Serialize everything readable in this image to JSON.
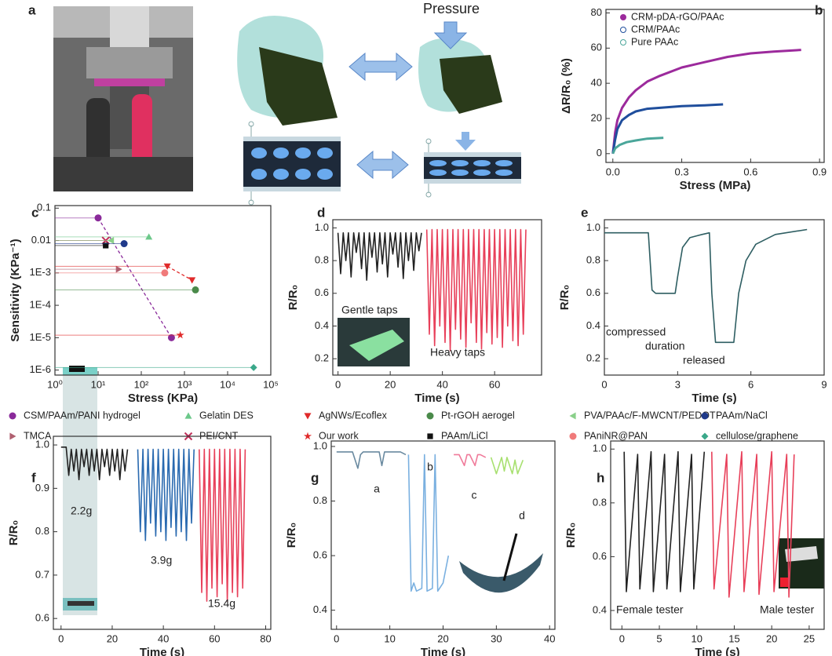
{
  "figure_a": {
    "panel": "a",
    "label": "Pressure"
  },
  "chart_data": [
    {
      "type": "line",
      "panel": "b",
      "xlabel": "Stress (MPa)",
      "ylabel": "ΔR/R₀ (%)",
      "xlim": [
        -0.03,
        0.92
      ],
      "ylim": [
        -5,
        82
      ],
      "xticks": [
        {
          "value": 0,
          "label": "0.0"
        },
        0.3,
        0.6,
        0.9
      ],
      "yticks": [
        0,
        20,
        40,
        60,
        80
      ],
      "legend": "upper left",
      "series": [
        {
          "name": "CRM-pDA-rGO/PAAc",
          "color": "#9c2a9c",
          "x": [
            0,
            0.01,
            0.02,
            0.04,
            0.07,
            0.1,
            0.15,
            0.2,
            0.3,
            0.4,
            0.5,
            0.6,
            0.7,
            0.82
          ],
          "values": [
            0,
            12,
            19,
            26,
            32,
            36,
            41,
            44,
            49,
            52,
            55,
            57,
            58,
            59
          ]
        },
        {
          "name": "CRM/PAAc",
          "color": "#1f4e9c",
          "x": [
            0,
            0.01,
            0.02,
            0.04,
            0.07,
            0.1,
            0.15,
            0.2,
            0.3,
            0.4,
            0.48
          ],
          "values": [
            0,
            8,
            14,
            19,
            22,
            24,
            25.5,
            26,
            27,
            27.5,
            28
          ]
        },
        {
          "name": "Pure PAAc",
          "color": "#4aa69a",
          "x": [
            0,
            0.01,
            0.03,
            0.06,
            0.1,
            0.15,
            0.22
          ],
          "values": [
            0,
            3,
            5,
            6.5,
            7.5,
            8.5,
            9
          ]
        }
      ]
    },
    {
      "type": "scatter",
      "panel": "c",
      "xlabel": "Stress (KPa)",
      "ylabel": "Sensitivity (KPa⁻¹)",
      "xscale": "log",
      "yscale": "log",
      "xlim": [
        1,
        100000
      ],
      "ylim": [
        7e-07,
        0.12
      ],
      "xticks": [
        {
          "value": 1,
          "label": "10⁰"
        },
        {
          "value": 10,
          "label": "10¹"
        },
        {
          "value": 100,
          "label": "10²"
        },
        {
          "value": 1000,
          "label": "10³"
        },
        {
          "value": 10000,
          "label": "10⁴"
        },
        {
          "value": 100000,
          "label": "10⁵"
        }
      ],
      "yticks": [
        {
          "value": 1e-06,
          "label": "1E-6"
        },
        {
          "value": 1e-05,
          "label": "1E-5"
        },
        {
          "value": 0.0001,
          "label": "1E-4"
        },
        {
          "value": 0.001,
          "label": "1E-3"
        },
        0.01,
        0.1
      ],
      "legend": "below",
      "series": [
        {
          "name": "CSM/PAAm/PANI hydrogel",
          "color": "#8a2a9a",
          "marker": "circle",
          "x": [
            10,
            500
          ],
          "values": [
            0.05,
            1e-05
          ]
        },
        {
          "name": "TMCA",
          "color": "#b06070",
          "marker": "triangle-right",
          "x": [
            30
          ],
          "values": [
            0.0013
          ]
        },
        {
          "name": "Gelatin DES",
          "color": "#6cc88a",
          "marker": "triangle-up",
          "x": [
            150
          ],
          "values": [
            0.013
          ]
        },
        {
          "name": "PEI/CNT",
          "color": "#c0305a",
          "marker": "x",
          "x": [
            15
          ],
          "values": [
            0.01
          ]
        },
        {
          "name": "AgNWs/Ecoflex",
          "color": "#e02a2a",
          "marker": "triangle-down",
          "x": [
            400,
            1500
          ],
          "values": [
            0.0016,
            0.0006
          ]
        },
        {
          "name": "Our work",
          "color": "#e02a2a",
          "marker": "star",
          "x": [
            800
          ],
          "values": [
            1.2e-05
          ]
        },
        {
          "name": "Pt-rGOH aerogel",
          "color": "#4a8a4a",
          "marker": "circle",
          "x": [
            1800
          ],
          "values": [
            0.0003
          ]
        },
        {
          "name": "PAAm/LiCl",
          "color": "#111111",
          "marker": "square",
          "x": [
            15
          ],
          "values": [
            0.007
          ]
        },
        {
          "name": "PVA/PAAc/F-MWCNT/PEDOT",
          "color": "#8ad08a",
          "marker": "triangle-left",
          "x": [
            20
          ],
          "values": [
            0.01
          ]
        },
        {
          "name": "PAniNR@PAN",
          "color": "#f07a7a",
          "marker": "circle",
          "x": [
            350
          ],
          "values": [
            0.001
          ]
        },
        {
          "name": "PAAm/NaCl",
          "color": "#1f3a8a",
          "marker": "circle",
          "x": [
            40
          ],
          "values": [
            0.008
          ]
        },
        {
          "name": "cellulose/graphene",
          "color": "#3aa88a",
          "marker": "diamond",
          "x": [
            40000
          ],
          "values": [
            1.2e-06
          ]
        }
      ]
    },
    {
      "type": "line",
      "panel": "d",
      "ylabel": "R/R₀",
      "xlabel": "Time (s)",
      "xlim": [
        -2,
        78
      ],
      "ylim": [
        0.1,
        1.05
      ],
      "xticks": [
        0,
        20,
        40,
        60
      ],
      "yticks": [
        0.2,
        0.4,
        0.6,
        0.8,
        {
          "value": 1,
          "label": "1.0"
        }
      ],
      "annotations": [
        {
          "text": "Gentle taps",
          "color": "#222222"
        },
        {
          "text": "Heavy taps",
          "color": "#e8405a"
        }
      ],
      "series": [
        {
          "color": "#222222",
          "x": [
            0,
            1,
            2,
            3,
            4,
            5,
            6,
            7,
            8,
            9,
            10,
            11,
            12,
            13,
            14,
            15,
            16,
            17,
            18,
            19,
            20,
            21,
            22,
            23,
            24,
            25,
            26,
            27,
            28,
            29,
            30,
            31,
            32
          ],
          "values": [
            0.97,
            0.72,
            0.97,
            0.8,
            0.97,
            0.7,
            0.97,
            0.85,
            0.97,
            0.75,
            0.97,
            0.68,
            0.97,
            0.82,
            0.97,
            0.73,
            0.97,
            0.78,
            0.97,
            0.7,
            0.97,
            0.84,
            0.97,
            0.76,
            0.97,
            0.69,
            0.97,
            0.8,
            0.97,
            0.74,
            0.97,
            0.86,
            0.97
          ]
        },
        {
          "color": "#e8405a",
          "x": [
            34,
            35,
            36,
            37,
            38,
            39,
            40,
            41,
            42,
            43,
            44,
            45,
            46,
            47,
            48,
            49,
            50,
            51,
            52,
            53,
            54,
            55,
            56,
            57,
            58,
            59,
            60,
            61,
            62,
            63,
            64,
            65,
            66,
            67,
            68,
            69,
            70,
            71,
            72
          ],
          "values": [
            0.99,
            0.35,
            0.99,
            0.28,
            0.99,
            0.4,
            0.99,
            0.3,
            0.99,
            0.25,
            0.99,
            0.38,
            0.99,
            0.32,
            0.99,
            0.27,
            0.99,
            0.42,
            0.99,
            0.3,
            0.99,
            0.26,
            0.99,
            0.36,
            0.99,
            0.29,
            0.99,
            0.33,
            0.99,
            0.27,
            0.99,
            0.4,
            0.99,
            0.31,
            0.99,
            0.28,
            0.99,
            0.35,
            0.99
          ]
        }
      ]
    },
    {
      "type": "line",
      "panel": "e",
      "ylabel": "R/R₀",
      "xlabel": "Time (s)",
      "xlim": [
        0,
        9
      ],
      "ylim": [
        0.1,
        1.05
      ],
      "xticks": [
        0,
        3,
        6,
        9
      ],
      "yticks": [
        0.2,
        0.4,
        0.6,
        0.8,
        {
          "value": 1,
          "label": "1.0"
        }
      ],
      "annotations": [
        {
          "text": "compressed",
          "color": "#222222"
        },
        {
          "text": "duration",
          "color": "#222222"
        },
        {
          "text": "released",
          "color": "#222222"
        }
      ],
      "series": [
        {
          "color": "#2e5e62",
          "x": [
            0,
            1.8,
            1.95,
            2.1,
            2.9,
            3.0,
            3.2,
            3.5,
            4.0,
            4.3,
            4.4,
            4.55,
            5.3,
            5.5,
            5.8,
            6.2,
            7.0,
            8.3
          ],
          "values": [
            0.97,
            0.97,
            0.62,
            0.6,
            0.6,
            0.7,
            0.88,
            0.94,
            0.96,
            0.97,
            0.6,
            0.3,
            0.3,
            0.6,
            0.8,
            0.9,
            0.96,
            0.99
          ]
        }
      ]
    },
    {
      "type": "line",
      "panel": "f",
      "ylabel": "R/R₀",
      "xlabel": "Time (s)",
      "xlim": [
        -3,
        82
      ],
      "ylim": [
        0.575,
        1.02
      ],
      "xticks": [
        0,
        20,
        40,
        60,
        80
      ],
      "yticks": [
        0.6,
        0.7,
        0.8,
        0.9,
        {
          "value": 1,
          "label": "1.0"
        }
      ],
      "annotations": [
        {
          "text": "2.2g",
          "color": "#222222"
        },
        {
          "text": "3.9g",
          "color": "#2a6ab0"
        },
        {
          "text": "15.4g",
          "color": "#e8405a"
        }
      ],
      "series": [
        {
          "color": "#222222",
          "x": [
            0,
            2,
            3,
            4,
            5,
            6,
            7,
            8,
            9,
            10,
            11,
            12,
            13,
            14,
            15,
            16,
            17,
            18,
            19,
            20,
            21,
            22,
            23,
            24,
            25,
            26
          ],
          "values": [
            0.995,
            0.995,
            0.93,
            0.99,
            0.94,
            0.99,
            0.92,
            0.99,
            0.95,
            0.99,
            0.93,
            0.99,
            0.94,
            0.99,
            0.92,
            0.99,
            0.95,
            0.99,
            0.93,
            0.99,
            0.94,
            0.99,
            0.92,
            0.99,
            0.94,
            0.99
          ]
        },
        {
          "color": "#2a6ab0",
          "x": [
            30,
            31,
            32,
            33,
            34,
            35,
            36,
            37,
            38,
            39,
            40,
            41,
            42,
            43,
            44,
            45,
            46,
            47,
            48,
            49,
            50,
            51,
            52
          ],
          "values": [
            0.99,
            0.8,
            0.99,
            0.78,
            0.99,
            0.82,
            0.99,
            0.79,
            0.99,
            0.8,
            0.99,
            0.78,
            0.99,
            0.81,
            0.99,
            0.79,
            0.99,
            0.8,
            0.99,
            0.78,
            0.99,
            0.82,
            0.99
          ]
        },
        {
          "color": "#e8405a",
          "x": [
            54,
            55,
            56,
            57,
            58,
            59,
            60,
            61,
            62,
            63,
            64,
            65,
            66,
            67,
            68,
            69,
            70,
            71,
            72
          ],
          "values": [
            0.99,
            0.66,
            0.99,
            0.64,
            0.99,
            0.67,
            0.99,
            0.65,
            0.99,
            0.68,
            0.99,
            0.64,
            0.99,
            0.66,
            0.99,
            0.65,
            0.99,
            0.67,
            0.99
          ]
        }
      ]
    },
    {
      "type": "line",
      "panel": "g",
      "ylabel": "R/R₀",
      "xlabel": "Time (s)",
      "xlim": [
        -1,
        41
      ],
      "ylim": [
        0.33,
        1.02
      ],
      "xticks": [
        0,
        10,
        20,
        30,
        40
      ],
      "yticks": [
        0.4,
        0.6,
        0.8,
        {
          "value": 1,
          "label": "1.0"
        }
      ],
      "annotations": [
        {
          "text": "a",
          "color": "#222222"
        },
        {
          "text": "b",
          "color": "#4a90d0"
        },
        {
          "text": "c",
          "color": "#e8405a"
        },
        {
          "text": "d",
          "color": "#90d060"
        }
      ],
      "series": [
        {
          "color": "#6a8aa0",
          "x": [
            0,
            3,
            4,
            4.5,
            5,
            8,
            8.5,
            9,
            12,
            13
          ],
          "values": [
            0.98,
            0.98,
            0.92,
            0.97,
            0.98,
            0.98,
            0.93,
            0.98,
            0.98,
            0.97
          ]
        },
        {
          "color": "#7ab0e0",
          "x": [
            13.5,
            14,
            14.5,
            15,
            16,
            16.5,
            17,
            18,
            18.5,
            19,
            20,
            21
          ],
          "values": [
            0.97,
            0.47,
            0.5,
            0.47,
            0.48,
            0.97,
            0.47,
            0.48,
            0.97,
            0.47,
            0.5,
            0.6
          ]
        },
        {
          "color": "#f07a9a",
          "x": [
            22,
            23,
            24,
            24.5,
            25,
            26,
            26.5,
            27,
            28
          ],
          "values": [
            0.97,
            0.97,
            0.93,
            0.97,
            0.97,
            0.93,
            0.97,
            0.97,
            0.96
          ]
        },
        {
          "color": "#a8e070",
          "x": [
            29,
            30,
            31,
            31.5,
            32,
            33,
            33.5,
            34,
            35
          ],
          "values": [
            0.96,
            0.9,
            0.96,
            0.91,
            0.96,
            0.9,
            0.95,
            0.9,
            0.95
          ]
        }
      ]
    },
    {
      "type": "line",
      "panel": "h",
      "ylabel": "R/R₀",
      "xlabel": "Time (s)",
      "xlim": [
        -1.5,
        27
      ],
      "ylim": [
        0.33,
        1.03
      ],
      "xticks": [
        0,
        5,
        10,
        15,
        20,
        25
      ],
      "yticks": [
        0.4,
        0.6,
        0.8,
        {
          "value": 1,
          "label": "1.0"
        }
      ],
      "annotations": [
        {
          "text": "Female tester",
          "color": "#222222"
        },
        {
          "text": "Male tester",
          "color": "#e8405a"
        }
      ],
      "series": [
        {
          "color": "#222222",
          "x": [
            0.3,
            0.6,
            2.1,
            2.4,
            3.9,
            4.2,
            5.7,
            6.0,
            7.5,
            7.8,
            9.3,
            9.6,
            11
          ],
          "values": [
            0.99,
            0.47,
            0.98,
            0.48,
            0.99,
            0.47,
            0.98,
            0.48,
            0.99,
            0.47,
            0.98,
            0.48,
            0.99
          ]
        },
        {
          "color": "#e8405a",
          "x": [
            12,
            12.3,
            14,
            14.3,
            16,
            16.3,
            18,
            18.3,
            20,
            20.3,
            22,
            22.3,
            23
          ],
          "values": [
            0.99,
            0.48,
            0.98,
            0.45,
            0.99,
            0.47,
            0.98,
            0.46,
            0.99,
            0.47,
            0.98,
            0.45,
            0.98
          ]
        }
      ]
    }
  ]
}
